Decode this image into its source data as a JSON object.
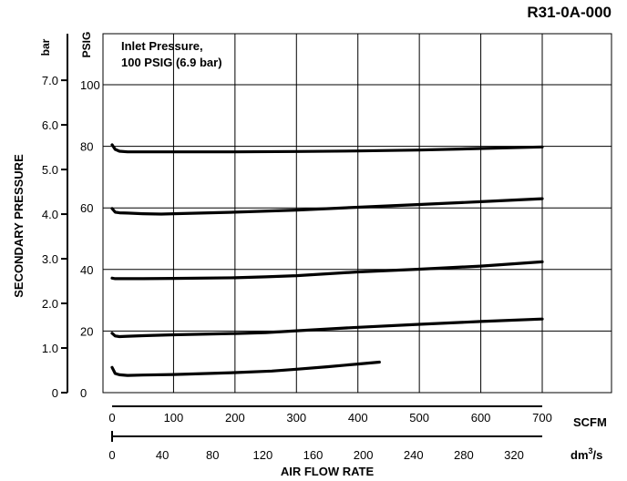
{
  "chart_data": {
    "type": "line",
    "title": "R31-0A-000",
    "annotation": [
      "Inlet Pressure,",
      "100 PSIG (6.9 bar)"
    ],
    "ylabel": "SECONDARY PRESSURE",
    "xlabel": "AIR FLOW RATE",
    "y_axes": [
      {
        "unit": "PSIG",
        "ticks": [
          "0",
          "20",
          "40",
          "60",
          "80",
          "100"
        ],
        "ylim": [
          0,
          115
        ]
      },
      {
        "unit": "bar",
        "ticks": [
          "0",
          "1.0",
          "2.0",
          "3.0",
          "4.0",
          "5.0",
          "6.0",
          "7.0"
        ],
        "ylim": [
          0,
          7.93
        ]
      }
    ],
    "x_axes": [
      {
        "unit": "SCFM",
        "ticks": [
          "0",
          "100",
          "200",
          "300",
          "400",
          "500",
          "600",
          "700"
        ],
        "xlim": [
          0,
          800
        ]
      },
      {
        "unit_base": "dm",
        "unit_sup": "3",
        "unit_tail": "/s",
        "ticks": [
          "0",
          "40",
          "80",
          "120",
          "160",
          "200",
          "240",
          "280",
          "320"
        ],
        "xlim": [
          0,
          377.6
        ]
      }
    ],
    "grid": true,
    "series": [
      {
        "x": [
          0,
          5,
          12,
          25,
          50,
          100,
          200,
          300,
          400,
          500,
          600,
          700
        ],
        "y": [
          80.5,
          79,
          78.4,
          78.2,
          78.2,
          78.2,
          78.2,
          78.3,
          78.5,
          78.8,
          79.3,
          79.8
        ]
      },
      {
        "x": [
          0,
          5,
          12,
          25,
          50,
          80,
          100,
          200,
          300,
          400,
          500,
          600,
          700
        ],
        "y": [
          59.8,
          58.6,
          58.4,
          58.3,
          58.1,
          58,
          58.1,
          58.6,
          59.3,
          60.2,
          61.1,
          62,
          63
        ]
      },
      {
        "x": [
          0,
          5,
          12,
          25,
          50,
          100,
          200,
          250,
          300,
          400,
          500,
          600,
          700
        ],
        "y": [
          37.2,
          37,
          37,
          37,
          37,
          37.1,
          37.3,
          37.6,
          38,
          39.2,
          40.1,
          41.1,
          42.5
        ]
      },
      {
        "x": [
          0,
          5,
          12,
          25,
          50,
          100,
          200,
          250,
          300,
          400,
          500,
          600,
          700
        ],
        "y": [
          19.3,
          18.4,
          18.2,
          18.3,
          18.5,
          18.8,
          19.2,
          19.5,
          20.1,
          21.2,
          22.2,
          23.1,
          23.9
        ]
      },
      {
        "x": [
          0,
          5,
          12,
          25,
          50,
          100,
          200,
          260,
          300,
          350,
          400,
          435
        ],
        "y": [
          8.2,
          6.2,
          5.8,
          5.6,
          5.7,
          5.9,
          6.5,
          7,
          7.6,
          8.4,
          9.3,
          9.9
        ]
      }
    ]
  }
}
